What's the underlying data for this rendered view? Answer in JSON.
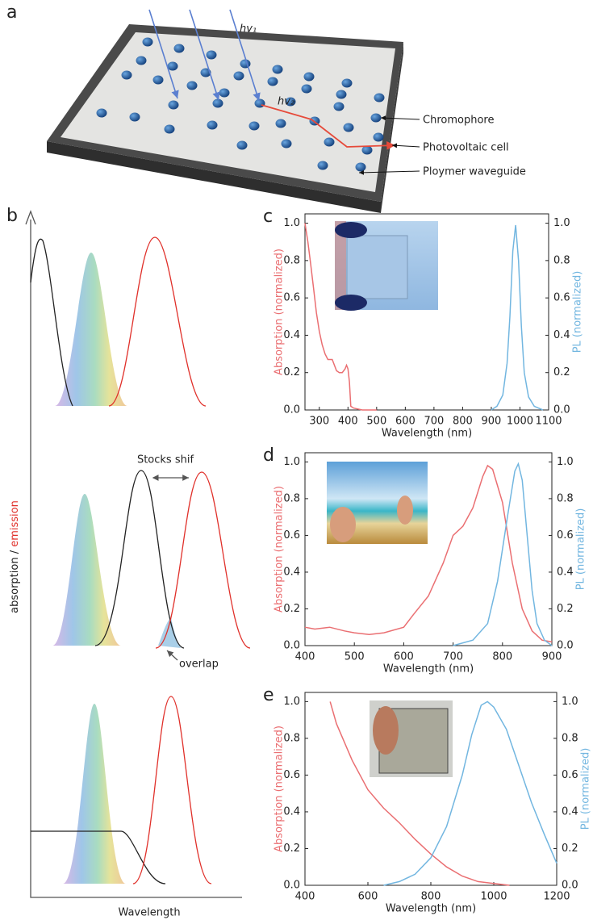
{
  "panel_a": {
    "label": "a",
    "photon_1": "hv₁",
    "photon_2": "hv₂",
    "callouts": [
      "Chromophore",
      "Photovoltaic cell",
      "Ploymer waveguide"
    ]
  },
  "panel_b": {
    "label": "b",
    "y_label_absorption": "absorption /",
    "y_label_emission": "emission",
    "x_label": "Wavelength",
    "stokes_label": "Stocks shif",
    "overlap_label": "overlap"
  },
  "chart_data": [
    {
      "type": "line",
      "panel_label": "c",
      "xlabel": "Wavelength (nm)",
      "ylabel": "Absorption (normalized)",
      "y2label": "PL (normalized)",
      "xlim": [
        250,
        1100
      ],
      "xticks": [
        300,
        400,
        500,
        600,
        700,
        800,
        900,
        1000,
        1100
      ],
      "ylim": [
        0,
        1.05
      ],
      "yticks": [
        {
          "value": 0,
          "label": "0.0"
        },
        {
          "value": 0.2,
          "label": "0.2"
        },
        {
          "value": 0.4,
          "label": "0.4"
        },
        {
          "value": 0.6,
          "label": "0.6"
        },
        {
          "value": 0.8,
          "label": "0.8"
        },
        {
          "value": 1,
          "label": "1.0"
        }
      ],
      "y2lim": [
        0,
        1.05
      ],
      "y2ticks": [
        {
          "value": 0,
          "label": "0.0"
        },
        {
          "value": 0.2,
          "label": "0.2"
        },
        {
          "value": 0.4,
          "label": "0.4"
        },
        {
          "value": 0.6,
          "label": "0.6"
        },
        {
          "value": 0.8,
          "label": "0.8"
        },
        {
          "value": 1,
          "label": "1.0"
        }
      ],
      "series": [
        {
          "color": "#ea6f72",
          "x": [
            250,
            260,
            270,
            280,
            290,
            300,
            310,
            320,
            330,
            345,
            360,
            370,
            380,
            390,
            395,
            400,
            405,
            410,
            420,
            450,
            500
          ],
          "values": [
            1.0,
            0.9,
            0.78,
            0.65,
            0.52,
            0.42,
            0.35,
            0.3,
            0.27,
            0.27,
            0.21,
            0.2,
            0.2,
            0.22,
            0.24,
            0.22,
            0.15,
            0.02,
            0.01,
            0.0,
            0.0
          ]
        },
        {
          "color": "#72b6e0",
          "axis": "y2",
          "x": [
            900,
            920,
            940,
            955,
            965,
            975,
            985,
            995,
            1005,
            1015,
            1030,
            1050,
            1080
          ],
          "values": [
            0.0,
            0.02,
            0.08,
            0.25,
            0.5,
            0.85,
            0.99,
            0.8,
            0.45,
            0.2,
            0.07,
            0.02,
            0.0
          ]
        }
      ]
    },
    {
      "type": "line",
      "panel_label": "d",
      "xlabel": "Wavelength (nm)",
      "ylabel": "Absorption (normalized)",
      "y2label": "PL (normalized)",
      "xlim": [
        400,
        900
      ],
      "xticks": [
        400,
        500,
        600,
        700,
        800,
        900
      ],
      "ylim": [
        0,
        1.05
      ],
      "yticks": [
        {
          "value": 0,
          "label": "0.0"
        },
        {
          "value": 0.2,
          "label": "0.2"
        },
        {
          "value": 0.4,
          "label": "0.4"
        },
        {
          "value": 0.6,
          "label": "0.6"
        },
        {
          "value": 0.8,
          "label": "0.8"
        },
        {
          "value": 1,
          "label": "1.0"
        }
      ],
      "y2lim": [
        0,
        1.05
      ],
      "y2ticks": [
        {
          "value": 0,
          "label": "0.0"
        },
        {
          "value": 0.2,
          "label": "0.2"
        },
        {
          "value": 0.4,
          "label": "0.4"
        },
        {
          "value": 0.6,
          "label": "0.6"
        },
        {
          "value": 0.8,
          "label": "0.8"
        },
        {
          "value": 1,
          "label": "1.0"
        }
      ],
      "series": [
        {
          "color": "#ea6f72",
          "x": [
            400,
            420,
            450,
            480,
            500,
            530,
            560,
            600,
            620,
            650,
            680,
            700,
            720,
            740,
            760,
            770,
            780,
            800,
            820,
            840,
            860,
            880,
            900
          ],
          "values": [
            0.1,
            0.09,
            0.1,
            0.08,
            0.07,
            0.06,
            0.07,
            0.1,
            0.17,
            0.27,
            0.45,
            0.6,
            0.65,
            0.75,
            0.92,
            0.98,
            0.96,
            0.78,
            0.45,
            0.2,
            0.08,
            0.03,
            0.02
          ]
        },
        {
          "color": "#72b6e0",
          "axis": "y2",
          "x": [
            700,
            740,
            770,
            790,
            810,
            825,
            832,
            840,
            850,
            860,
            870,
            885,
            900
          ],
          "values": [
            0.0,
            0.03,
            0.12,
            0.35,
            0.7,
            0.95,
            0.99,
            0.9,
            0.6,
            0.3,
            0.12,
            0.03,
            0.0
          ]
        }
      ]
    },
    {
      "type": "line",
      "panel_label": "e",
      "xlabel": "Wavelength (nm)",
      "ylabel": "Absorption (normalized)",
      "y2label": "PL (normalized)",
      "xlim": [
        400,
        1200
      ],
      "xticks": [
        400,
        600,
        800,
        1000,
        1200
      ],
      "ylim": [
        0,
        1.05
      ],
      "yticks": [
        {
          "value": 0,
          "label": "0.0"
        },
        {
          "value": 0.2,
          "label": "0.2"
        },
        {
          "value": 0.4,
          "label": "0.4"
        },
        {
          "value": 0.6,
          "label": "0.6"
        },
        {
          "value": 0.8,
          "label": "0.8"
        },
        {
          "value": 1,
          "label": "1.0"
        }
      ],
      "y2lim": [
        0,
        1.05
      ],
      "y2ticks": [
        {
          "value": 0,
          "label": "0.0"
        },
        {
          "value": 0.2,
          "label": "0.2"
        },
        {
          "value": 0.4,
          "label": "0.4"
        },
        {
          "value": 0.6,
          "label": "0.6"
        },
        {
          "value": 0.8,
          "label": "0.8"
        },
        {
          "value": 1,
          "label": "1.0"
        }
      ],
      "series": [
        {
          "color": "#ea6f72",
          "x": [
            480,
            500,
            550,
            600,
            650,
            700,
            750,
            800,
            850,
            900,
            950,
            1000,
            1050
          ],
          "values": [
            1.0,
            0.88,
            0.68,
            0.52,
            0.42,
            0.34,
            0.25,
            0.17,
            0.1,
            0.05,
            0.02,
            0.01,
            0.0
          ]
        },
        {
          "color": "#72b6e0",
          "axis": "y2",
          "x": [
            650,
            700,
            750,
            800,
            850,
            900,
            930,
            960,
            980,
            1000,
            1040,
            1080,
            1120,
            1160,
            1200
          ],
          "values": [
            0.0,
            0.02,
            0.06,
            0.15,
            0.32,
            0.6,
            0.82,
            0.98,
            1.0,
            0.97,
            0.85,
            0.65,
            0.45,
            0.28,
            0.12
          ]
        }
      ]
    }
  ]
}
